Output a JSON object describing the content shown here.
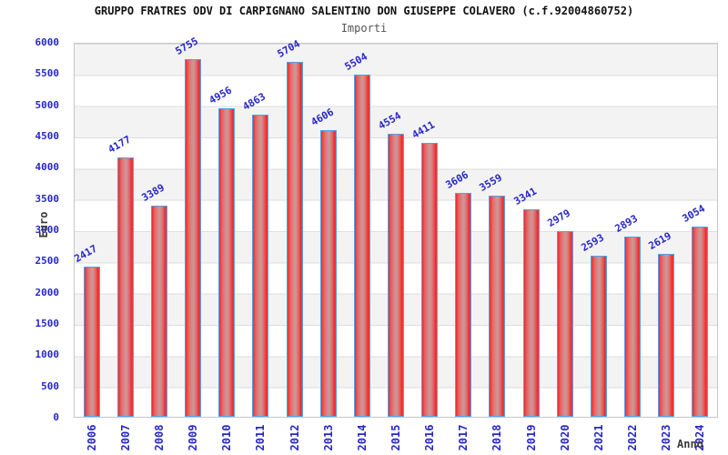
{
  "header": {
    "title": "GRUPPO FRATRES ODV DI CARPIGNANO SALENTINO DON GIUSEPPE COLAVERO (c.f.92004860752)"
  },
  "chart_data": {
    "type": "bar",
    "title": "Importi",
    "categories": [
      "2006",
      "2007",
      "2008",
      "2009",
      "2010",
      "2011",
      "2012",
      "2013",
      "2014",
      "2015",
      "2016",
      "2017",
      "2018",
      "2019",
      "2020",
      "2021",
      "2022",
      "2023",
      "2024"
    ],
    "values": [
      2417,
      4177,
      3389,
      5755,
      4956,
      4863,
      5704,
      4606,
      5504,
      4554,
      4411,
      3606,
      3559,
      3341,
      2979,
      2593,
      2893,
      2619,
      3054
    ],
    "xlabel": "Anno",
    "ylabel": "Euro",
    "ylim": [
      0,
      6000
    ],
    "ytick_step": 500,
    "y_ticks": [
      6000,
      5500,
      5000,
      4500,
      4000,
      3500,
      3000,
      2500,
      2000,
      1500,
      1000,
      500,
      0
    ],
    "grid": true,
    "legend": false,
    "bands": "alternating horizontal gray/white stripes, gray topmost"
  },
  "colors": {
    "bar_fill": "#ee2a2a",
    "bar_fill_mid": "#cc9898",
    "bar_border": "#55a0e6",
    "tick_label": "#2727c9",
    "value_label": "#2727c9",
    "band_gray": "#f3f3f3",
    "gridline": "#dedede",
    "plot_border": "#c6c6c6",
    "title_color": "#111111",
    "subtitle_color": "#555555",
    "axis_title_color": "#3a3a3a"
  }
}
